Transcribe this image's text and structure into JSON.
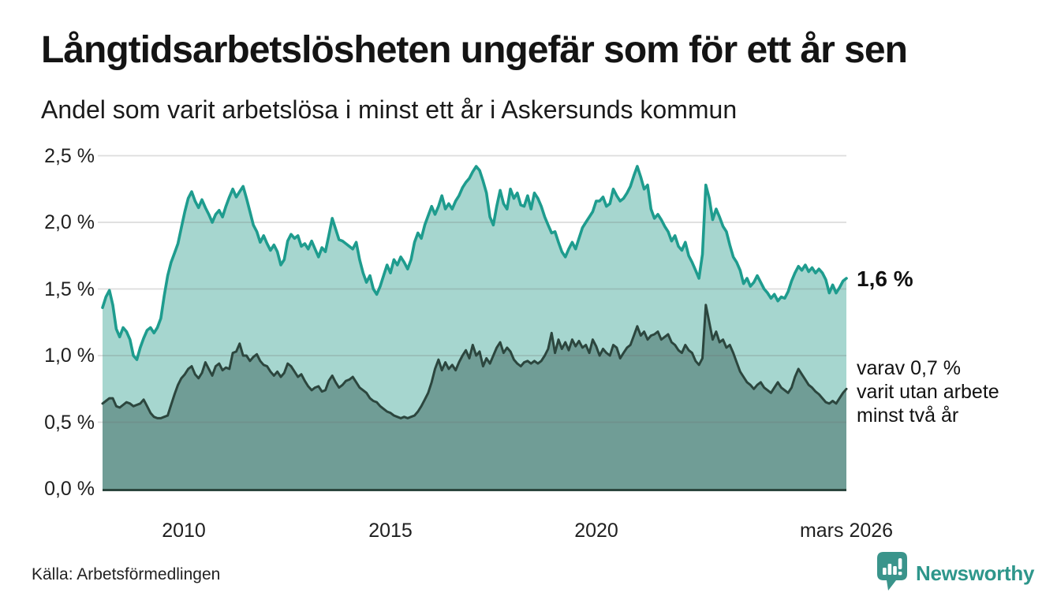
{
  "page": {
    "source": "Källa: Arbetsförmedlingen",
    "logo_text": "Newsworthy",
    "logo_color": "#3a948b"
  },
  "chart_data": {
    "type": "area",
    "title": "Långtidsarbetslösheten ungefär som för ett år sen",
    "subtitle": "Andel som varit arbetslösa i minst ett år i Askersunds kommun",
    "x_range_note": "månadsvärden från 2008 till mars 2026",
    "ylim": [
      0,
      2.5
    ],
    "grid": true,
    "y_ticks": [
      {
        "label": "0,0 %",
        "v": 0
      },
      {
        "label": "0,5 %",
        "v": 0.5
      },
      {
        "label": "1,0 %",
        "v": 1.0
      },
      {
        "label": "1,5 %",
        "v": 1.5
      },
      {
        "label": "2,0 %",
        "v": 2.0
      },
      {
        "label": "2,5 %",
        "v": 2.5
      }
    ],
    "x_ticks": [
      {
        "label": "2010",
        "i": 23.7
      },
      {
        "label": "2015",
        "i": 84.0
      },
      {
        "label": "2020",
        "i": 144.1
      },
      {
        "label": "mars 2026",
        "i": 217
      }
    ],
    "series": [
      {
        "name": "Andel arbetslösa minst ett år",
        "color": "#1e9c8e",
        "fill": "#a6d6cf",
        "end_label": "1,6 %",
        "values": [
          1.36,
          1.44,
          1.49,
          1.38,
          1.2,
          1.14,
          1.21,
          1.18,
          1.12,
          1.0,
          0.97,
          1.06,
          1.13,
          1.19,
          1.21,
          1.17,
          1.21,
          1.28,
          1.45,
          1.6,
          1.7,
          1.77,
          1.84,
          1.96,
          2.08,
          2.18,
          2.23,
          2.16,
          2.11,
          2.17,
          2.11,
          2.06,
          2.0,
          2.06,
          2.09,
          2.04,
          2.12,
          2.19,
          2.25,
          2.19,
          2.23,
          2.27,
          2.18,
          2.08,
          1.98,
          1.93,
          1.85,
          1.9,
          1.84,
          1.79,
          1.83,
          1.78,
          1.68,
          1.72,
          1.86,
          1.91,
          1.88,
          1.9,
          1.82,
          1.84,
          1.8,
          1.86,
          1.8,
          1.74,
          1.81,
          1.78,
          1.9,
          2.03,
          1.95,
          1.87,
          1.86,
          1.84,
          1.82,
          1.8,
          1.85,
          1.72,
          1.62,
          1.55,
          1.6,
          1.5,
          1.46,
          1.52,
          1.6,
          1.68,
          1.62,
          1.72,
          1.68,
          1.74,
          1.7,
          1.65,
          1.72,
          1.85,
          1.92,
          1.88,
          1.98,
          2.05,
          2.12,
          2.06,
          2.12,
          2.2,
          2.1,
          2.14,
          2.1,
          2.16,
          2.2,
          2.26,
          2.3,
          2.33,
          2.38,
          2.42,
          2.39,
          2.31,
          2.22,
          2.04,
          1.98,
          2.12,
          2.24,
          2.14,
          2.1,
          2.25,
          2.18,
          2.22,
          2.13,
          2.12,
          2.2,
          2.1,
          2.22,
          2.18,
          2.12,
          2.04,
          1.98,
          1.92,
          1.93,
          1.85,
          1.78,
          1.74,
          1.8,
          1.85,
          1.8,
          1.88,
          1.96,
          2.0,
          2.04,
          2.08,
          2.16,
          2.16,
          2.19,
          2.12,
          2.14,
          2.25,
          2.2,
          2.16,
          2.18,
          2.22,
          2.27,
          2.35,
          2.42,
          2.34,
          2.25,
          2.28,
          2.1,
          2.03,
          2.06,
          2.02,
          1.97,
          1.93,
          1.86,
          1.9,
          1.82,
          1.79,
          1.85,
          1.75,
          1.7,
          1.64,
          1.58,
          1.76,
          2.28,
          2.18,
          2.02,
          2.1,
          2.04,
          1.97,
          1.93,
          1.83,
          1.74,
          1.7,
          1.64,
          1.54,
          1.58,
          1.52,
          1.55,
          1.6,
          1.55,
          1.5,
          1.47,
          1.43,
          1.46,
          1.41,
          1.44,
          1.43,
          1.48,
          1.56,
          1.62,
          1.67,
          1.64,
          1.68,
          1.63,
          1.66,
          1.62,
          1.65,
          1.62,
          1.57,
          1.47,
          1.53,
          1.47,
          1.51,
          1.56,
          1.58
        ]
      },
      {
        "name": "varav utan arbete minst två år",
        "color": "#2c463e",
        "fill": "#709d96",
        "end_label_lines": [
          "varav 0,7 %",
          "varit utan arbete",
          "minst två år"
        ],
        "values": [
          0.64,
          0.66,
          0.68,
          0.68,
          0.62,
          0.61,
          0.63,
          0.65,
          0.64,
          0.62,
          0.63,
          0.64,
          0.67,
          0.62,
          0.57,
          0.54,
          0.53,
          0.53,
          0.54,
          0.55,
          0.63,
          0.71,
          0.78,
          0.83,
          0.86,
          0.9,
          0.92,
          0.86,
          0.83,
          0.87,
          0.95,
          0.9,
          0.85,
          0.92,
          0.94,
          0.89,
          0.91,
          0.9,
          1.02,
          1.03,
          1.09,
          1.0,
          1.0,
          0.96,
          0.99,
          1.01,
          0.96,
          0.93,
          0.92,
          0.88,
          0.85,
          0.88,
          0.84,
          0.87,
          0.94,
          0.92,
          0.88,
          0.84,
          0.86,
          0.81,
          0.77,
          0.74,
          0.76,
          0.77,
          0.73,
          0.74,
          0.81,
          0.85,
          0.8,
          0.76,
          0.78,
          0.81,
          0.82,
          0.84,
          0.8,
          0.76,
          0.74,
          0.72,
          0.68,
          0.66,
          0.65,
          0.62,
          0.6,
          0.58,
          0.57,
          0.55,
          0.54,
          0.53,
          0.54,
          0.53,
          0.54,
          0.55,
          0.58,
          0.62,
          0.67,
          0.72,
          0.8,
          0.9,
          0.97,
          0.89,
          0.95,
          0.9,
          0.93,
          0.89,
          0.95,
          1.0,
          1.04,
          0.98,
          1.08,
          1.0,
          1.03,
          0.92,
          0.98,
          0.94,
          1.0,
          1.06,
          1.1,
          1.02,
          1.06,
          1.03,
          0.97,
          0.94,
          0.92,
          0.95,
          0.96,
          0.94,
          0.96,
          0.94,
          0.96,
          1.0,
          1.05,
          1.17,
          1.02,
          1.12,
          1.05,
          1.1,
          1.04,
          1.12,
          1.07,
          1.11,
          1.06,
          1.08,
          1.02,
          1.12,
          1.07,
          1.0,
          1.05,
          1.02,
          1.0,
          1.08,
          1.06,
          0.98,
          1.02,
          1.06,
          1.08,
          1.15,
          1.22,
          1.15,
          1.18,
          1.12,
          1.15,
          1.16,
          1.18,
          1.12,
          1.14,
          1.16,
          1.1,
          1.08,
          1.04,
          1.02,
          1.08,
          1.04,
          1.02,
          0.96,
          0.93,
          0.98,
          1.38,
          1.25,
          1.12,
          1.18,
          1.1,
          1.12,
          1.06,
          1.08,
          1.02,
          0.95,
          0.88,
          0.84,
          0.8,
          0.78,
          0.75,
          0.78,
          0.8,
          0.76,
          0.74,
          0.72,
          0.76,
          0.8,
          0.76,
          0.74,
          0.72,
          0.76,
          0.84,
          0.9,
          0.86,
          0.82,
          0.78,
          0.76,
          0.73,
          0.71,
          0.68,
          0.65,
          0.64,
          0.66,
          0.64,
          0.68,
          0.72,
          0.75
        ]
      }
    ]
  }
}
